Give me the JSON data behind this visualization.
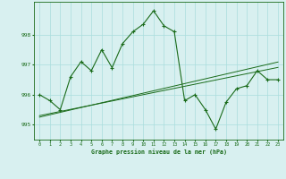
{
  "title": "Graphe pression niveau de la mer (hPa)",
  "x_values": [
    0,
    1,
    2,
    3,
    4,
    5,
    6,
    7,
    8,
    9,
    10,
    11,
    12,
    13,
    14,
    15,
    16,
    17,
    18,
    19,
    20,
    21,
    22,
    23
  ],
  "y_main": [
    996.0,
    995.8,
    995.5,
    996.6,
    997.1,
    996.8,
    997.5,
    996.9,
    997.7,
    998.1,
    998.35,
    998.8,
    998.3,
    998.1,
    995.8,
    996.0,
    995.5,
    994.85,
    995.75,
    996.2,
    996.3,
    996.8,
    996.5,
    996.5
  ],
  "y_trend1": [
    995.3,
    995.37,
    995.44,
    995.51,
    995.58,
    995.65,
    995.72,
    995.79,
    995.86,
    995.93,
    996.0,
    996.07,
    996.14,
    996.21,
    996.28,
    996.35,
    996.42,
    996.49,
    996.56,
    996.63,
    996.7,
    996.77,
    996.84,
    996.91
  ],
  "y_trend2": [
    995.25,
    995.33,
    995.41,
    995.49,
    995.57,
    995.65,
    995.73,
    995.81,
    995.89,
    995.97,
    996.05,
    996.13,
    996.21,
    996.29,
    996.37,
    996.45,
    996.53,
    996.61,
    996.69,
    996.77,
    996.85,
    996.93,
    997.01,
    997.09
  ],
  "ylim": [
    994.5,
    999.1
  ],
  "yticks": [
    995,
    996,
    997,
    998
  ],
  "line_color": "#1a6b1a",
  "bg_color": "#d8f0f0",
  "grid_color": "#aadddd",
  "label_color": "#1a6b1a",
  "figsize": [
    3.2,
    2.0
  ],
  "dpi": 100
}
